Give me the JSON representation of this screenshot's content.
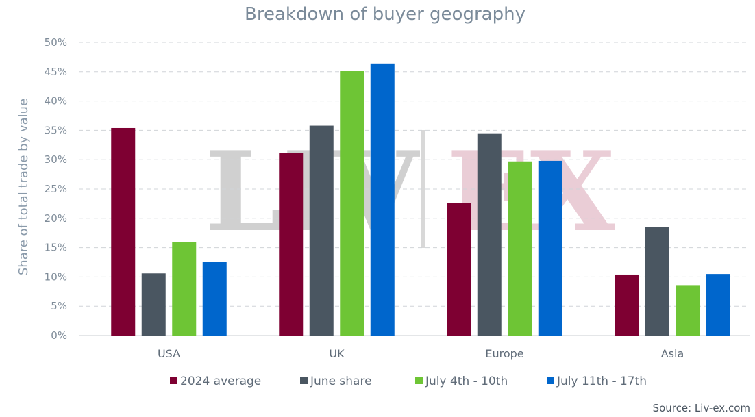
{
  "chart_data": {
    "type": "bar",
    "title": "Breakdown of buyer geography",
    "ylabel": "Share of total trade by value",
    "xlabel": "",
    "categories": [
      "USA",
      "UK",
      "Europe",
      "Asia"
    ],
    "ylim": [
      0,
      50
    ],
    "yticks": [
      "0%",
      "5%",
      "10%",
      "15%",
      "20%",
      "25%",
      "30%",
      "35%",
      "40%",
      "45%",
      "50%"
    ],
    "grid": true,
    "legend_position": "bottom",
    "series": [
      {
        "name": "2024 average",
        "color": "#7e0032",
        "values": [
          35.4,
          31.1,
          22.6,
          10.4
        ]
      },
      {
        "name": "June share",
        "color": "#4a5661",
        "values": [
          10.6,
          35.8,
          34.5,
          18.5
        ]
      },
      {
        "name": "July 4th - 10th",
        "color": "#6ec535",
        "values": [
          16.0,
          45.1,
          29.7,
          8.6
        ]
      },
      {
        "name": "July 11th - 17th",
        "color": "#0066cc",
        "values": [
          12.6,
          46.4,
          29.8,
          10.5
        ]
      }
    ],
    "source": "Source: Liv-ex.com"
  },
  "watermark": {
    "left_text": "LIV",
    "right_text": "EX",
    "left_color": "#c8c8c8",
    "right_color": "#e8c8d2"
  }
}
